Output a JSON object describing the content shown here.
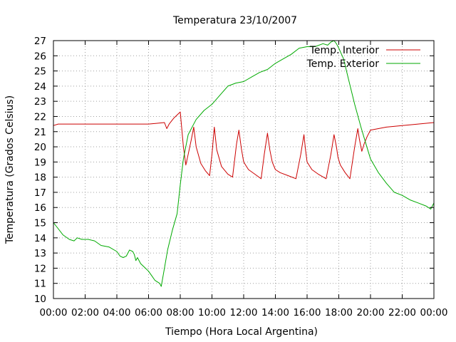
{
  "chart_data": {
    "type": "line",
    "title": "Temperatura 23/10/2007",
    "xlabel": "Tiempo (Hora Local Argentina)",
    "ylabel": "Temperatura (Grados Celsius)",
    "x_unit": "hours",
    "xlim": [
      0,
      24
    ],
    "ylim": [
      10,
      27
    ],
    "x_ticks": [
      0,
      2,
      4,
      6,
      8,
      10,
      12,
      14,
      16,
      18,
      20,
      22,
      24
    ],
    "x_tick_labels": [
      "00:00",
      "02:00",
      "04:00",
      "06:00",
      "08:00",
      "10:00",
      "12:00",
      "14:00",
      "16:00",
      "18:00",
      "20:00",
      "22:00",
      "00:00"
    ],
    "y_ticks": [
      10,
      11,
      12,
      13,
      14,
      15,
      16,
      17,
      18,
      19,
      20,
      21,
      22,
      23,
      24,
      25,
      26,
      27
    ],
    "y_tick_labels": [
      "10",
      "11",
      "12",
      "13",
      "14",
      "15",
      "16",
      "17",
      "18",
      "19",
      "20",
      "21",
      "22",
      "23",
      "24",
      "25",
      "26",
      "27"
    ],
    "grid": true,
    "legend_position": "top-right",
    "series": [
      {
        "name": "Temp. Interior",
        "color": "#cc0000",
        "x": [
          0,
          0.3,
          6.0,
          6.5,
          7.0,
          7.15,
          7.3,
          7.6,
          8.0,
          8.2,
          8.35,
          8.5,
          8.7,
          8.85,
          9.0,
          9.3,
          9.6,
          9.85,
          10.0,
          10.15,
          10.3,
          10.6,
          11.0,
          11.3,
          11.55,
          11.7,
          11.85,
          12.0,
          12.3,
          12.7,
          13.1,
          13.3,
          13.5,
          13.65,
          13.8,
          14.0,
          14.3,
          14.8,
          15.3,
          15.6,
          15.8,
          15.9,
          16.0,
          16.3,
          16.7,
          17.2,
          17.5,
          17.7,
          17.85,
          17.95,
          18.1,
          18.4,
          18.7,
          19.0,
          19.2,
          19.3,
          19.45,
          19.6,
          19.8,
          20.0,
          20.5,
          21.0,
          22.0,
          23.0,
          24.0
        ],
        "values": [
          21.4,
          21.5,
          21.5,
          21.55,
          21.6,
          21.2,
          21.5,
          21.9,
          22.3,
          20.0,
          18.8,
          19.5,
          20.5,
          21.3,
          20.0,
          18.9,
          18.4,
          18.1,
          19.5,
          21.3,
          19.8,
          18.7,
          18.2,
          18.0,
          20.2,
          21.1,
          19.9,
          19.0,
          18.5,
          18.2,
          17.9,
          19.5,
          20.9,
          19.8,
          19.0,
          18.5,
          18.3,
          18.1,
          17.9,
          19.5,
          20.8,
          19.8,
          19.0,
          18.5,
          18.2,
          17.9,
          19.5,
          20.8,
          20.0,
          19.3,
          18.8,
          18.3,
          17.9,
          20.0,
          21.2,
          20.5,
          19.7,
          20.2,
          20.7,
          21.1,
          21.2,
          21.3,
          21.4,
          21.5,
          21.6
        ]
      },
      {
        "name": "Temp. Exterior",
        "color": "#00aa00",
        "x": [
          0,
          0.3,
          0.6,
          1.0,
          1.3,
          1.5,
          1.8,
          2.2,
          2.6,
          3.0,
          3.5,
          4.0,
          4.2,
          4.4,
          4.6,
          4.8,
          5.0,
          5.1,
          5.2,
          5.3,
          5.5,
          5.8,
          6.0,
          6.2,
          6.4,
          6.7,
          6.8,
          7.0,
          7.2,
          7.5,
          7.8,
          8.0,
          8.2,
          8.5,
          8.8,
          9.0,
          9.5,
          10.0,
          10.5,
          11.0,
          11.5,
          12.0,
          12.5,
          13.0,
          13.5,
          14.0,
          14.5,
          15.0,
          15.5,
          16.0,
          16.5,
          17.0,
          17.3,
          17.5,
          17.7,
          17.85,
          18.0,
          18.3,
          18.6,
          19.0,
          19.4,
          19.8,
          20.0,
          20.5,
          21.0,
          21.5,
          22.0,
          22.5,
          23.0,
          23.5,
          23.8,
          24.0
        ],
        "values": [
          15.0,
          14.6,
          14.2,
          13.9,
          13.8,
          14.0,
          13.9,
          13.9,
          13.8,
          13.5,
          13.4,
          13.1,
          12.8,
          12.7,
          12.8,
          13.2,
          13.1,
          12.9,
          12.5,
          12.7,
          12.3,
          12.0,
          11.8,
          11.5,
          11.2,
          11.0,
          10.8,
          12.0,
          13.2,
          14.5,
          15.6,
          17.5,
          19.2,
          20.8,
          21.4,
          21.8,
          22.4,
          22.8,
          23.4,
          24.0,
          24.2,
          24.3,
          24.6,
          24.9,
          25.1,
          25.5,
          25.8,
          26.1,
          26.5,
          26.6,
          26.6,
          26.8,
          26.7,
          26.9,
          27.0,
          26.8,
          26.5,
          25.8,
          24.5,
          22.8,
          21.3,
          19.9,
          19.2,
          18.3,
          17.6,
          17.0,
          16.8,
          16.5,
          16.3,
          16.1,
          15.9,
          16.3
        ]
      }
    ]
  }
}
